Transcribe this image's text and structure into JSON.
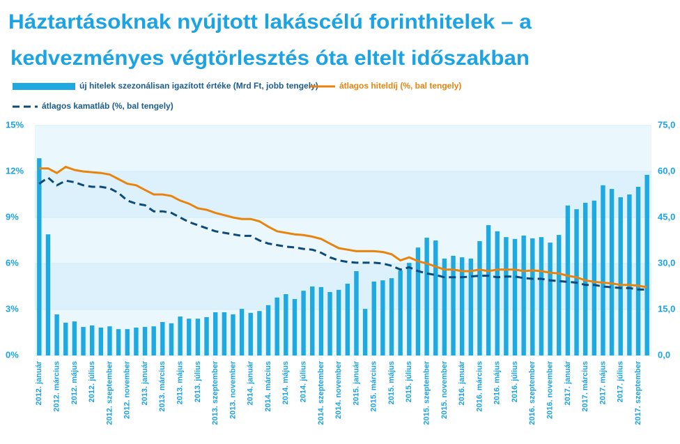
{
  "chart_data": {
    "type": "bar-line",
    "title": [
      "Háztartásoknak nyújtott lakáscélú forinthitelek – a",
      "kedvezményes végtörlesztés óta eltelt időszakban"
    ],
    "categories": [
      "2012. január",
      null,
      "2012. március",
      null,
      "2012. május",
      null,
      "2012. július",
      null,
      "2012. szeptember",
      null,
      "2012. november",
      null,
      "2013. január",
      null,
      "2013. március",
      null,
      "2013. május",
      null,
      "2013. július",
      null,
      "2013. szeptember",
      null,
      "2013. november",
      null,
      "2014. január",
      null,
      "2014. március",
      null,
      "2014. május",
      null,
      "2014. július",
      null,
      "2014. szeptember",
      null,
      "2014. november",
      null,
      "2015. január",
      null,
      "2015. március",
      null,
      "2015. május",
      null,
      "2015. július",
      null,
      "2015. szeptember",
      null,
      "2015. november",
      null,
      "2016. január",
      null,
      "2016. március",
      null,
      "2016. május",
      null,
      "2016. július",
      null,
      "2016. szeptember",
      null,
      "2016. november",
      null,
      "2017. január",
      null,
      "2017. március",
      null,
      "2017. május",
      null,
      "2017. július",
      null,
      "2017. szeptember",
      null
    ],
    "series": [
      {
        "name": "új hitelek szezonálisan igazított értéke (Mrd Ft, jobb tengely)",
        "kind": "bar",
        "axis": "y2",
        "color": "#1ea9e1",
        "values": [
          64.3,
          39.5,
          13.4,
          10.7,
          11.1,
          9.3,
          9.8,
          9.1,
          9.5,
          8.6,
          8.6,
          9.1,
          9.3,
          9.5,
          10.9,
          10.5,
          12.7,
          12,
          12,
          12.5,
          14.1,
          14.1,
          13.4,
          15.2,
          13.9,
          14.5,
          16.4,
          18.9,
          20,
          18.4,
          21.1,
          22.5,
          22.3,
          20.7,
          21.4,
          23.4,
          27.5,
          15.2,
          24.1,
          24.5,
          25.2,
          27.7,
          30.2,
          35.2,
          38.4,
          37.5,
          31.6,
          32.5,
          32,
          31.6,
          37.3,
          42.5,
          40.5,
          38.6,
          38,
          39.1,
          38.2,
          38.6,
          36.8,
          39.3,
          48.9,
          47.7,
          49.8,
          50.5,
          55.5,
          54.3,
          51.6,
          52.5,
          55,
          58.9
        ]
      },
      {
        "name": "átlagos hiteldíj (%, bal tengely)",
        "kind": "line",
        "axis": "y",
        "color": "#e8840e",
        "dash": false,
        "values": [
          12.2,
          12.2,
          11.9,
          12.3,
          12.1,
          12.0,
          11.95,
          11.9,
          11.8,
          11.5,
          11.2,
          11.1,
          10.8,
          10.5,
          10.5,
          10.4,
          10.1,
          9.9,
          9.6,
          9.5,
          9.3,
          9.15,
          9.0,
          8.9,
          8.9,
          8.75,
          8.4,
          8.1,
          8.0,
          7.9,
          7.85,
          7.75,
          7.6,
          7.3,
          7.0,
          6.9,
          6.8,
          6.8,
          6.8,
          6.75,
          6.6,
          6.2,
          6.4,
          6.15,
          6.0,
          5.8,
          5.6,
          5.6,
          5.5,
          5.5,
          5.6,
          5.5,
          5.6,
          5.6,
          5.6,
          5.5,
          5.55,
          5.5,
          5.4,
          5.35,
          5.2,
          5.1,
          4.9,
          4.8,
          4.75,
          4.7,
          4.6,
          4.6,
          4.55,
          4.45
        ]
      },
      {
        "name": "átlagos kamatláb (%, bal tengely)",
        "kind": "line",
        "axis": "y",
        "color": "#0d4a7a",
        "dash": true,
        "values": [
          11.2,
          11.6,
          11.1,
          11.4,
          11.3,
          11.1,
          11.0,
          11.0,
          10.9,
          10.6,
          10.1,
          9.9,
          9.8,
          9.4,
          9.4,
          9.3,
          9.0,
          8.7,
          8.5,
          8.3,
          8.1,
          8.0,
          7.9,
          7.8,
          7.8,
          7.5,
          7.3,
          7.2,
          7.1,
          7.05,
          6.95,
          6.9,
          6.7,
          6.4,
          6.2,
          6.1,
          6.05,
          6.05,
          6.05,
          6.0,
          5.85,
          5.6,
          5.75,
          5.5,
          5.35,
          5.25,
          5.1,
          5.1,
          5.1,
          5.15,
          5.2,
          5.2,
          5.1,
          5.15,
          5.15,
          5.05,
          5.0,
          5.0,
          4.9,
          4.85,
          4.8,
          4.75,
          4.6,
          4.6,
          4.5,
          4.45,
          4.4,
          4.4,
          4.3,
          4.3
        ]
      }
    ],
    "ylim": [
      0,
      15
    ],
    "yticks": [
      {
        "value": 0,
        "label": "0%"
      },
      {
        "value": 3,
        "label": "3%"
      },
      {
        "value": 6,
        "label": "6%"
      },
      {
        "value": 9,
        "label": "9%"
      },
      {
        "value": 12,
        "label": "12%"
      },
      {
        "value": 15,
        "label": "15%"
      }
    ],
    "y2lim": [
      0,
      75
    ],
    "y2ticks": [
      {
        "value": 0,
        "label": "0,0"
      },
      {
        "value": 15,
        "label": "15,0"
      },
      {
        "value": 30,
        "label": "30,0"
      },
      {
        "value": 45,
        "label": "45,0"
      },
      {
        "value": 60,
        "label": "60,0"
      },
      {
        "value": 75,
        "label": "75,0"
      }
    ],
    "grid": true
  }
}
